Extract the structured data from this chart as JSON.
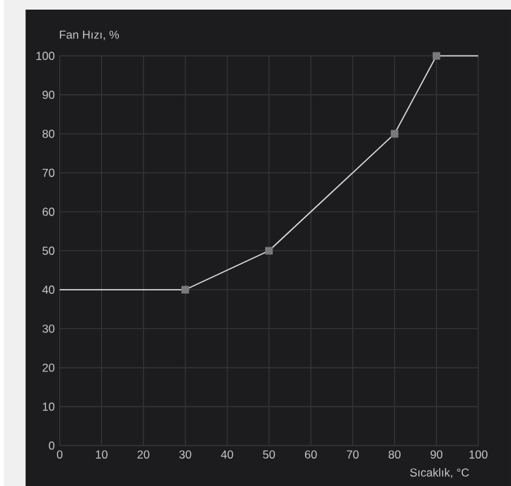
{
  "chart_data": {
    "type": "line",
    "xlabel": "Sıcaklık, °C",
    "ylabel": "Fan Hızı, %",
    "series": [
      {
        "color": "#d9d9d9",
        "x": [
          0,
          30,
          50,
          80,
          90,
          100
        ],
        "values": [
          40,
          40,
          50,
          80,
          100,
          100
        ],
        "marker": "none"
      },
      {
        "type": "scatter",
        "color": "#7a7a7a",
        "x": [
          30,
          50,
          80,
          90
        ],
        "values": [
          40,
          50,
          80,
          100
        ],
        "marker": "square"
      }
    ],
    "xlim": [
      0,
      100
    ],
    "ylim": [
      0,
      100
    ],
    "xticks": [
      0,
      10,
      20,
      30,
      40,
      50,
      60,
      70,
      80,
      90,
      100
    ],
    "yticks": [
      0,
      10,
      20,
      30,
      40,
      50,
      60,
      70,
      80,
      90,
      100
    ],
    "grid": true
  }
}
